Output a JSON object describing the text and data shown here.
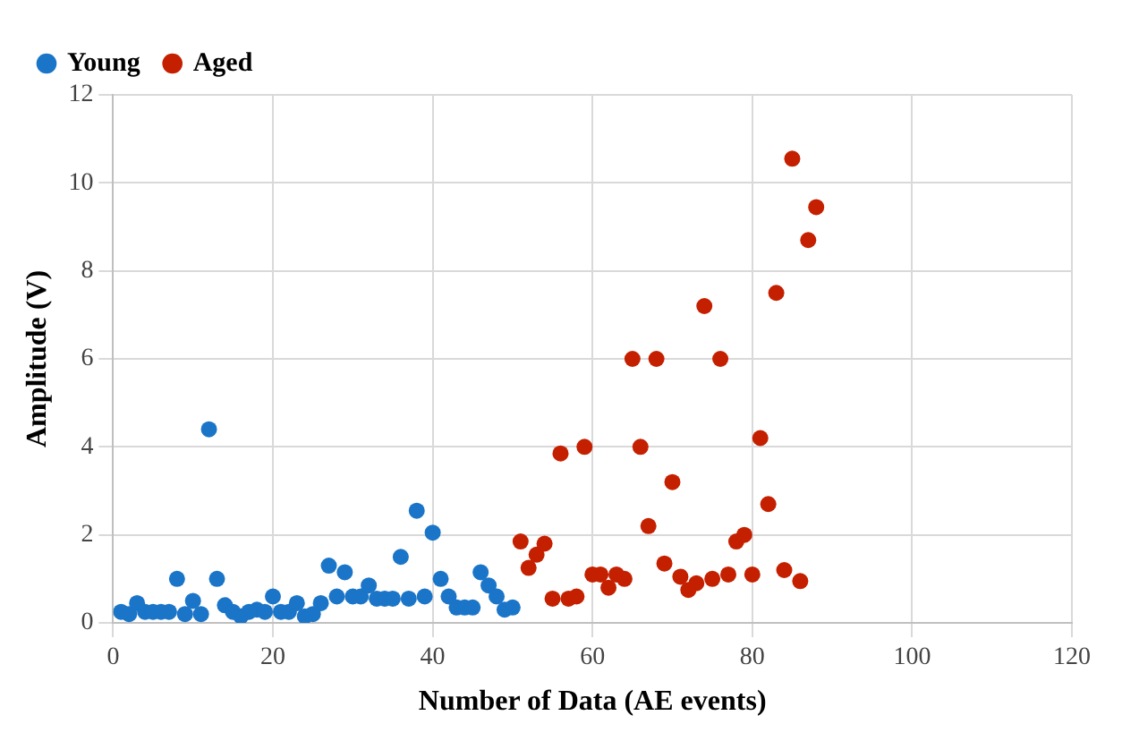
{
  "chart_data": {
    "type": "scatter",
    "xlabel": "Number of Data (AE events)",
    "ylabel": "Amplitude (V)",
    "xlim": [
      0,
      120
    ],
    "xticks": [
      0,
      20,
      40,
      60,
      80,
      100,
      120
    ],
    "ylim": [
      0,
      12
    ],
    "yticks": [
      0,
      2,
      4,
      6,
      8,
      10,
      12
    ],
    "grid": true,
    "legend": "top left",
    "marker": "circle",
    "series": [
      {
        "name": "Young",
        "color": "#1a75c8",
        "x": [
          1,
          2,
          3,
          4,
          5,
          6,
          7,
          8,
          9,
          10,
          11,
          12,
          13,
          14,
          15,
          16,
          17,
          18,
          19,
          20,
          21,
          22,
          23,
          24,
          25,
          26,
          27,
          28,
          29,
          30,
          31,
          32,
          33,
          34,
          35,
          36,
          37,
          38,
          39,
          40,
          41,
          42,
          43,
          44,
          45,
          46,
          47,
          48,
          49,
          50
        ],
        "values": [
          0.25,
          0.2,
          0.45,
          0.25,
          0.25,
          0.25,
          0.25,
          1.0,
          0.2,
          0.5,
          0.2,
          4.4,
          1.0,
          0.4,
          0.25,
          0.15,
          0.25,
          0.3,
          0.25,
          0.6,
          0.25,
          0.25,
          0.45,
          0.15,
          0.2,
          0.45,
          1.3,
          0.6,
          1.15,
          0.6,
          0.6,
          0.85,
          0.55,
          0.55,
          0.55,
          1.5,
          0.55,
          2.55,
          0.6,
          2.05,
          1.0,
          0.6,
          0.35,
          0.35,
          0.35,
          1.15,
          0.85,
          0.6,
          0.3,
          0.35
        ]
      },
      {
        "name": "Aged",
        "color": "#c42000",
        "x": [
          51,
          52,
          53,
          54,
          55,
          56,
          57,
          58,
          59,
          60,
          61,
          62,
          63,
          64,
          65,
          66,
          67,
          68,
          69,
          70,
          71,
          72,
          73,
          74,
          75,
          76,
          77,
          78,
          79,
          80,
          81,
          82,
          83,
          84,
          85,
          86,
          87,
          88
        ],
        "values": [
          1.85,
          1.25,
          1.55,
          1.8,
          0.55,
          3.85,
          0.55,
          0.6,
          4.0,
          1.1,
          1.1,
          0.8,
          1.1,
          1.0,
          6.0,
          4.0,
          2.2,
          6.0,
          1.35,
          3.2,
          1.05,
          0.75,
          0.9,
          7.2,
          1.0,
          6.0,
          1.1,
          1.85,
          2.0,
          1.1,
          4.2,
          2.7,
          7.5,
          1.2,
          10.55,
          0.95,
          8.7,
          9.45
        ]
      }
    ]
  }
}
